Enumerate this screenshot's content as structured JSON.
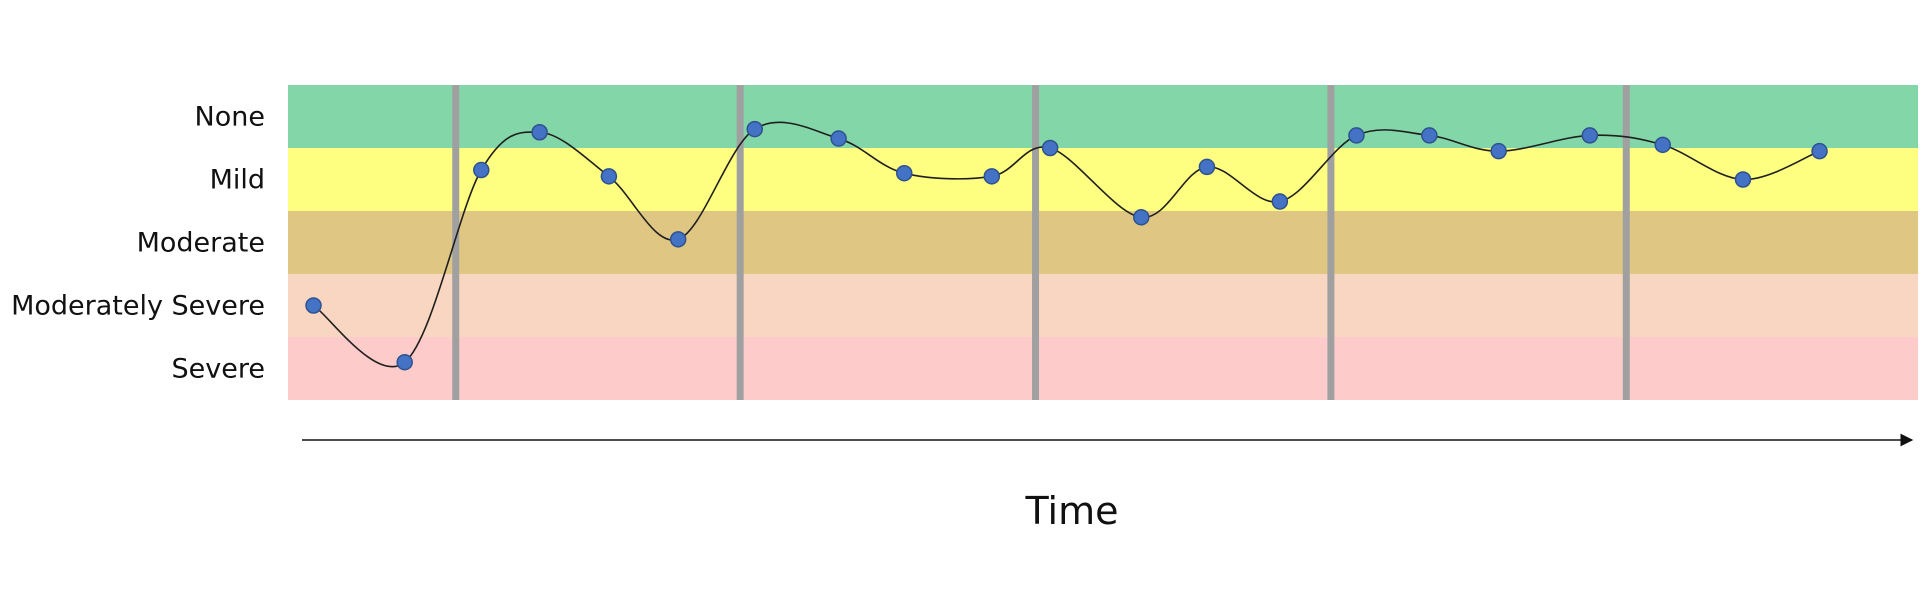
{
  "chart_data": {
    "type": "line",
    "title": "",
    "xlabel": "Time",
    "ylabel": "",
    "x_axis": "unlabeled arrow",
    "grid": false,
    "severity_levels": [
      {
        "label": "None",
        "value": 4,
        "color": "#82d6a7"
      },
      {
        "label": "Mild",
        "value": 3,
        "color": "#fefe80"
      },
      {
        "label": "Moderate",
        "value": 2,
        "color": "#dfc783"
      },
      {
        "label": "Moderately Severe",
        "value": 1,
        "color": "#f9d6c1"
      },
      {
        "label": "Severe",
        "value": 0,
        "color": "#fecbcb"
      }
    ],
    "period_dividers_x": [
      2.3,
      6.2,
      10.25,
      14.3,
      18.35
    ],
    "divider_color": "#a0a0a0",
    "xlim": [
      0,
      22.35
    ],
    "ylim": [
      -0.5,
      4.5
    ],
    "series": [
      {
        "color": "#4472c4",
        "line_color": "#1f1f1f",
        "points": [
          {
            "x": 0.35,
            "y": 1.0
          },
          {
            "x": 1.6,
            "y": 0.1
          },
          {
            "x": 2.65,
            "y": 3.15
          },
          {
            "x": 3.45,
            "y": 3.75
          },
          {
            "x": 4.4,
            "y": 3.05
          },
          {
            "x": 5.35,
            "y": 2.05
          },
          {
            "x": 6.4,
            "y": 3.8
          },
          {
            "x": 7.55,
            "y": 3.65
          },
          {
            "x": 8.45,
            "y": 3.1
          },
          {
            "x": 9.65,
            "y": 3.05
          },
          {
            "x": 10.45,
            "y": 3.5
          },
          {
            "x": 11.7,
            "y": 2.4
          },
          {
            "x": 12.6,
            "y": 3.2
          },
          {
            "x": 13.6,
            "y": 2.65
          },
          {
            "x": 14.65,
            "y": 3.7
          },
          {
            "x": 15.65,
            "y": 3.7
          },
          {
            "x": 16.6,
            "y": 3.45
          },
          {
            "x": 17.85,
            "y": 3.7
          },
          {
            "x": 18.85,
            "y": 3.55
          },
          {
            "x": 19.95,
            "y": 3.0
          },
          {
            "x": 21.0,
            "y": 3.45
          }
        ]
      }
    ]
  }
}
